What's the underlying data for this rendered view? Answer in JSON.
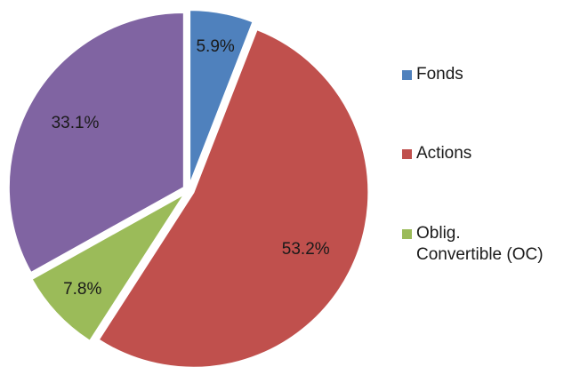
{
  "chart_data": {
    "type": "pie",
    "categories": [
      "Fonds",
      "Actions",
      "Oblig.\nConvertible (OC)",
      null
    ],
    "values": [
      5.9,
      53.2,
      7.8,
      33.1
    ],
    "value_labels": [
      "5.9%",
      "53.2%",
      "7.8%",
      "33.1%"
    ],
    "colors": [
      "#4f81bd",
      "#c0504d",
      "#9bbb59",
      "#8064a2"
    ],
    "legend": "right"
  }
}
